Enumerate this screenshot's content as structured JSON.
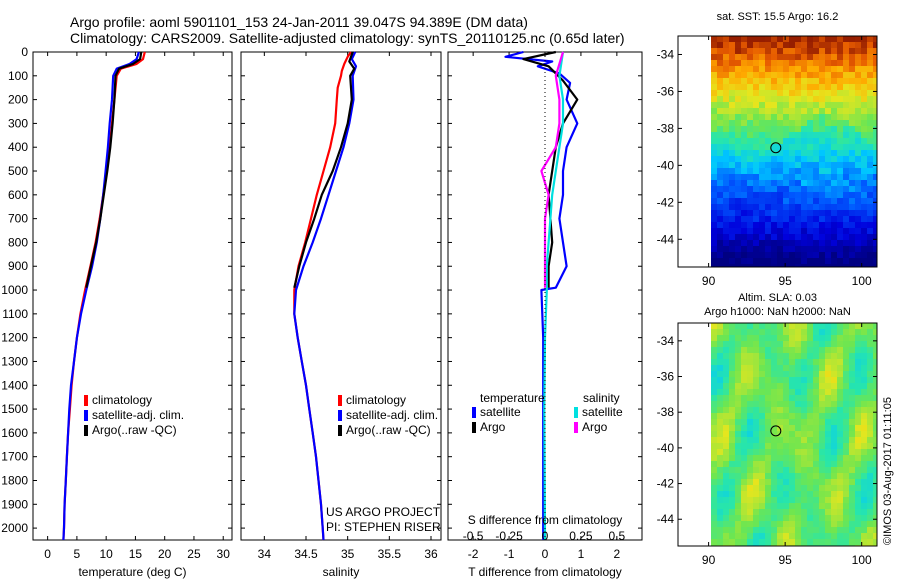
{
  "header": {
    "line1": "Argo profile: aoml 5901101_153 24-Jan-2011 39.047S 94.389E (DM data)",
    "line2": "Climatology: CARS2009. Satellite-adjusted climatology: synTS_20110125.nc (0.65d later)"
  },
  "credits": {
    "project": "US ARGO PROJECT",
    "pi": "PI: STEPHEN RISER",
    "imos": "©IMOS 03-Aug-2017 01:11:05"
  },
  "colors": {
    "climatology": "#ff0000",
    "satellite": "#0000ff",
    "argo": "#000000",
    "sal_satellite": "#00e0e0",
    "sal_argo": "#ff00ff"
  },
  "chart_data": [
    {
      "type": "line",
      "title": "",
      "xlabel": "temperature (deg C)",
      "ylabel": "",
      "xlim": [
        -2.5,
        31.5
      ],
      "ylim": [
        2050,
        0
      ],
      "xticks": [
        0,
        5,
        10,
        15,
        20,
        25,
        30
      ],
      "yticks": [
        0,
        100,
        200,
        300,
        400,
        500,
        600,
        700,
        800,
        900,
        1000,
        1100,
        1200,
        1300,
        1400,
        1500,
        1600,
        1700,
        1800,
        1900,
        2000
      ],
      "legend": [
        "climatology",
        "satellite-adj. clim.",
        "Argo(..raw -QC)"
      ],
      "series": [
        {
          "name": "climatology",
          "color": "#ff0000",
          "points": [
            [
              16.6,
              0
            ],
            [
              16.3,
              30
            ],
            [
              15.2,
              50
            ],
            [
              12.5,
              70
            ],
            [
              11.8,
              100
            ],
            [
              11.4,
              200
            ],
            [
              11.0,
              300
            ],
            [
              10.6,
              400
            ],
            [
              10.1,
              500
            ],
            [
              9.5,
              600
            ],
            [
              8.9,
              700
            ],
            [
              8.2,
              800
            ],
            [
              7.3,
              900
            ],
            [
              6.4,
              1000
            ],
            [
              5.6,
              1100
            ],
            [
              5.0,
              1200
            ],
            [
              4.5,
              1300
            ],
            [
              4.1,
              1400
            ],
            [
              3.8,
              1500
            ],
            [
              3.5,
              1600
            ],
            [
              3.3,
              1700
            ],
            [
              3.1,
              1800
            ],
            [
              2.9,
              1900
            ],
            [
              2.8,
              2000
            ],
            [
              2.7,
              2050
            ]
          ]
        },
        {
          "name": "satellite-adj. clim.",
          "color": "#0000ff",
          "points": [
            [
              15.6,
              0
            ],
            [
              15.2,
              30
            ],
            [
              14.0,
              50
            ],
            [
              11.8,
              70
            ],
            [
              11.2,
              100
            ],
            [
              11.0,
              200
            ],
            [
              10.6,
              300
            ],
            [
              10.3,
              400
            ],
            [
              9.9,
              500
            ],
            [
              9.5,
              600
            ],
            [
              9.0,
              700
            ],
            [
              8.4,
              800
            ],
            [
              7.6,
              900
            ],
            [
              6.6,
              1000
            ],
            [
              5.7,
              1100
            ],
            [
              5.0,
              1200
            ],
            [
              4.5,
              1300
            ],
            [
              4.0,
              1400
            ],
            [
              3.7,
              1500
            ],
            [
              3.5,
              1600
            ],
            [
              3.3,
              1700
            ],
            [
              3.1,
              1800
            ],
            [
              2.9,
              1900
            ],
            [
              2.8,
              2000
            ],
            [
              2.7,
              2050
            ]
          ]
        },
        {
          "name": "Argo(..raw -QC)",
          "color": "#000000",
          "points": [
            [
              16.0,
              0
            ],
            [
              15.8,
              30
            ],
            [
              14.6,
              50
            ],
            [
              12.2,
              70
            ],
            [
              11.6,
              100
            ],
            [
              11.4,
              200
            ],
            [
              11.1,
              300
            ],
            [
              10.7,
              400
            ],
            [
              10.2,
              500
            ],
            [
              9.6,
              600
            ],
            [
              9.0,
              700
            ],
            [
              8.3,
              800
            ],
            [
              7.4,
              900
            ],
            [
              6.6,
              990
            ]
          ]
        }
      ]
    },
    {
      "type": "line",
      "title": "",
      "xlabel": "salinity",
      "ylabel": "",
      "xlim": [
        33.72,
        36.12
      ],
      "ylim": [
        2050,
        0
      ],
      "xticks": [
        34,
        34.5,
        35,
        35.5,
        36
      ],
      "legend": [
        "climatology",
        "satellite-adj. clim.",
        "Argo(..raw -QC)"
      ],
      "series": [
        {
          "name": "climatology",
          "color": "#ff0000",
          "points": [
            [
              35.04,
              0
            ],
            [
              35.0,
              20
            ],
            [
              34.96,
              50
            ],
            [
              34.93,
              80
            ],
            [
              34.92,
              100
            ],
            [
              34.88,
              150
            ],
            [
              34.87,
              200
            ],
            [
              34.85,
              300
            ],
            [
              34.79,
              400
            ],
            [
              34.71,
              500
            ],
            [
              34.63,
              600
            ],
            [
              34.56,
              700
            ],
            [
              34.49,
              800
            ],
            [
              34.41,
              900
            ],
            [
              34.36,
              1000
            ],
            [
              34.36,
              1100
            ],
            [
              34.4,
              1200
            ],
            [
              34.45,
              1300
            ],
            [
              34.5,
              1400
            ],
            [
              34.54,
              1500
            ],
            [
              34.58,
              1600
            ],
            [
              34.62,
              1700
            ],
            [
              34.65,
              1800
            ],
            [
              34.68,
              1900
            ],
            [
              34.7,
              2000
            ],
            [
              34.71,
              2050
            ]
          ]
        },
        {
          "name": "satellite-adj. clim.",
          "color": "#0000ff",
          "points": [
            [
              35.09,
              0
            ],
            [
              35.05,
              30
            ],
            [
              35.1,
              60
            ],
            [
              35.06,
              100
            ],
            [
              35.07,
              200
            ],
            [
              35.02,
              300
            ],
            [
              34.95,
              400
            ],
            [
              34.86,
              500
            ],
            [
              34.77,
              600
            ],
            [
              34.68,
              700
            ],
            [
              34.58,
              800
            ],
            [
              34.47,
              900
            ],
            [
              34.38,
              1000
            ],
            [
              34.36,
              1100
            ],
            [
              34.4,
              1200
            ],
            [
              34.45,
              1300
            ],
            [
              34.5,
              1400
            ],
            [
              34.54,
              1500
            ],
            [
              34.58,
              1600
            ],
            [
              34.62,
              1700
            ],
            [
              34.65,
              1800
            ],
            [
              34.68,
              1900
            ],
            [
              34.7,
              2000
            ],
            [
              34.71,
              2050
            ]
          ]
        },
        {
          "name": "Argo(..raw -QC)",
          "color": "#000000",
          "points": [
            [
              35.06,
              0
            ],
            [
              35.02,
              40
            ],
            [
              35.08,
              70
            ],
            [
              35.03,
              100
            ],
            [
              35.05,
              200
            ],
            [
              35.0,
              300
            ],
            [
              34.92,
              400
            ],
            [
              34.82,
              500
            ],
            [
              34.69,
              600
            ],
            [
              34.6,
              700
            ],
            [
              34.5,
              800
            ],
            [
              34.42,
              900
            ],
            [
              34.36,
              990
            ]
          ]
        }
      ]
    },
    {
      "type": "line",
      "title": "",
      "xlabel": "T difference from climatology",
      "ylabel": "",
      "xlim": [
        -2.7,
        2.7
      ],
      "ylim": [
        2050,
        0
      ],
      "xticks": [
        -2,
        -1,
        0,
        1,
        2
      ],
      "secondary_xlabel": "S difference from climatology",
      "secondary_xticks": [
        -0.5,
        -0.25,
        0,
        0.25,
        0.5
      ],
      "secondary_xlim": [
        -0.675,
        0.675
      ],
      "legend_groups": [
        {
          "title": "temperature",
          "entries": [
            "satellite",
            "Argo"
          ]
        },
        {
          "title": "salinity",
          "entries": [
            "satellite",
            "Argo"
          ]
        }
      ],
      "series": [
        {
          "name": "satellite",
          "group": "temperature",
          "color": "#0000ff",
          "points": [
            [
              -0.6,
              0
            ],
            [
              -1.1,
              20
            ],
            [
              0.2,
              40
            ],
            [
              -0.2,
              60
            ],
            [
              0.4,
              90
            ],
            [
              0.7,
              130
            ],
            [
              0.6,
              200
            ],
            [
              0.9,
              300
            ],
            [
              0.6,
              400
            ],
            [
              0.5,
              500
            ],
            [
              0.5,
              600
            ],
            [
              0.4,
              700
            ],
            [
              0.5,
              800
            ],
            [
              0.6,
              900
            ],
            [
              0.3,
              990
            ],
            [
              -0.1,
              1000
            ],
            [
              -0.05,
              1200
            ],
            [
              -0.05,
              1500
            ],
            [
              -0.05,
              2050
            ]
          ]
        },
        {
          "name": "Argo",
          "group": "temperature",
          "color": "#000000",
          "points": [
            [
              0.3,
              0
            ],
            [
              -0.6,
              30
            ],
            [
              0.1,
              60
            ],
            [
              0.5,
              120
            ],
            [
              0.9,
              200
            ],
            [
              0.5,
              300
            ],
            [
              0.3,
              400
            ],
            [
              0.1,
              600
            ],
            [
              0.2,
              800
            ],
            [
              0.1,
              900
            ],
            [
              0.1,
              990
            ]
          ]
        },
        {
          "name": "satellite",
          "group": "salinity",
          "color": "#00e0e0",
          "points": [
            [
              0.5,
              0
            ],
            [
              0.4,
              100
            ],
            [
              0.5,
              200
            ],
            [
              0.5,
              300
            ],
            [
              0.4,
              400
            ],
            [
              0.3,
              500
            ],
            [
              0.2,
              600
            ],
            [
              0.15,
              700
            ],
            [
              0.1,
              800
            ],
            [
              0.05,
              900
            ],
            [
              0.05,
              1000
            ],
            [
              0.0,
              1200
            ],
            [
              -0.02,
              1500
            ],
            [
              0.0,
              2050
            ]
          ]
        },
        {
          "name": "Argo",
          "group": "salinity",
          "color": "#ff00ff",
          "points": [
            [
              0.5,
              0
            ],
            [
              0.3,
              100
            ],
            [
              0.4,
              200
            ],
            [
              0.4,
              300
            ],
            [
              0.3,
              400
            ],
            [
              -0.1,
              500
            ],
            [
              0.1,
              600
            ],
            [
              0.0,
              700
            ],
            [
              0.0,
              800
            ],
            [
              0.0,
              900
            ],
            [
              0.0,
              990
            ]
          ]
        }
      ]
    },
    {
      "type": "heatmap",
      "title": "sat. SST: 15.5 Argo: 16.2",
      "xlim": [
        88,
        101
      ],
      "ylim": [
        -45.5,
        -33
      ],
      "xticks": [
        90,
        95,
        100
      ],
      "yticks": [
        -34,
        -36,
        -38,
        -40,
        -42,
        -44
      ],
      "profile_marker": {
        "lon": 94.389,
        "lat": -39.047
      }
    },
    {
      "type": "heatmap",
      "title": "Altim. SLA: 0.03",
      "subtitle": "Argo h1000: NaN h2000: NaN",
      "xlim": [
        88,
        101
      ],
      "ylim": [
        -45.5,
        -33
      ],
      "xticks": [
        90,
        95,
        100
      ],
      "yticks": [
        -34,
        -36,
        -38,
        -40,
        -42,
        -44
      ],
      "profile_marker": {
        "lon": 94.389,
        "lat": -39.047
      }
    }
  ]
}
